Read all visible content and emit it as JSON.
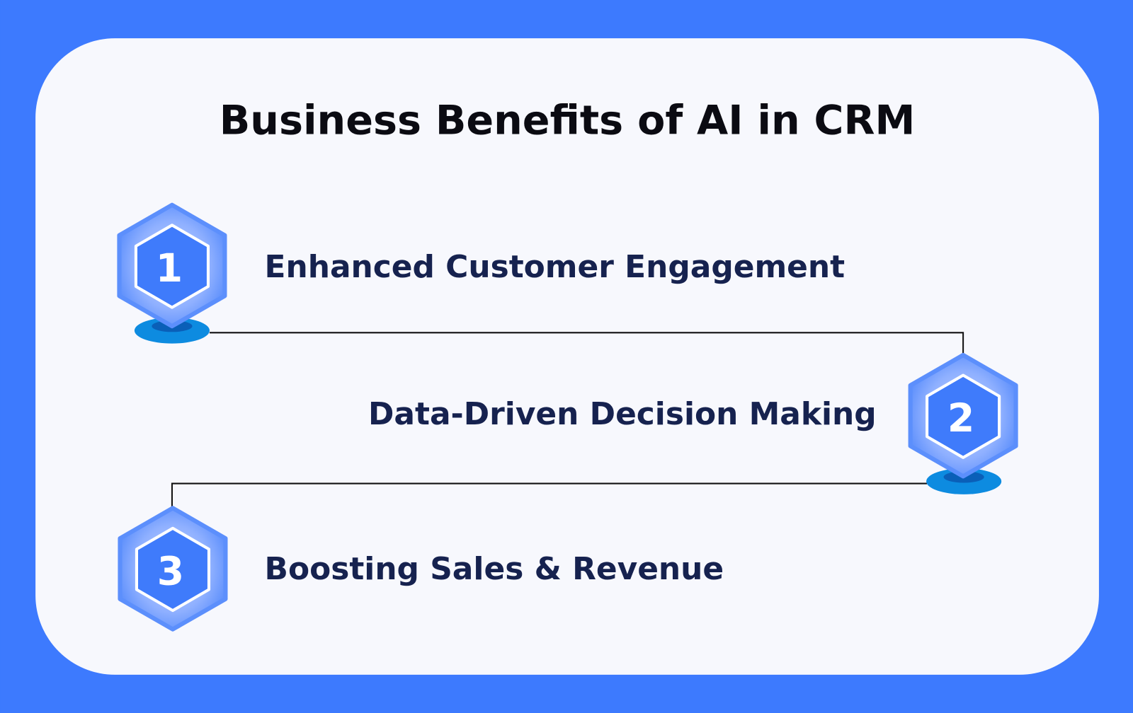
{
  "title": "Business Benefits of AI in CRM",
  "colors": {
    "background": "#3d7afe",
    "card": "#f7f8fd",
    "hexagon": "#3f7bfb",
    "text": "#16224f",
    "base": "#0d8be0"
  },
  "steps": [
    {
      "number": "1",
      "label": "Enhanced Customer Engagement"
    },
    {
      "number": "2",
      "label": "Data-Driven Decision Making"
    },
    {
      "number": "3",
      "label": "Boosting Sales & Revenue"
    }
  ]
}
